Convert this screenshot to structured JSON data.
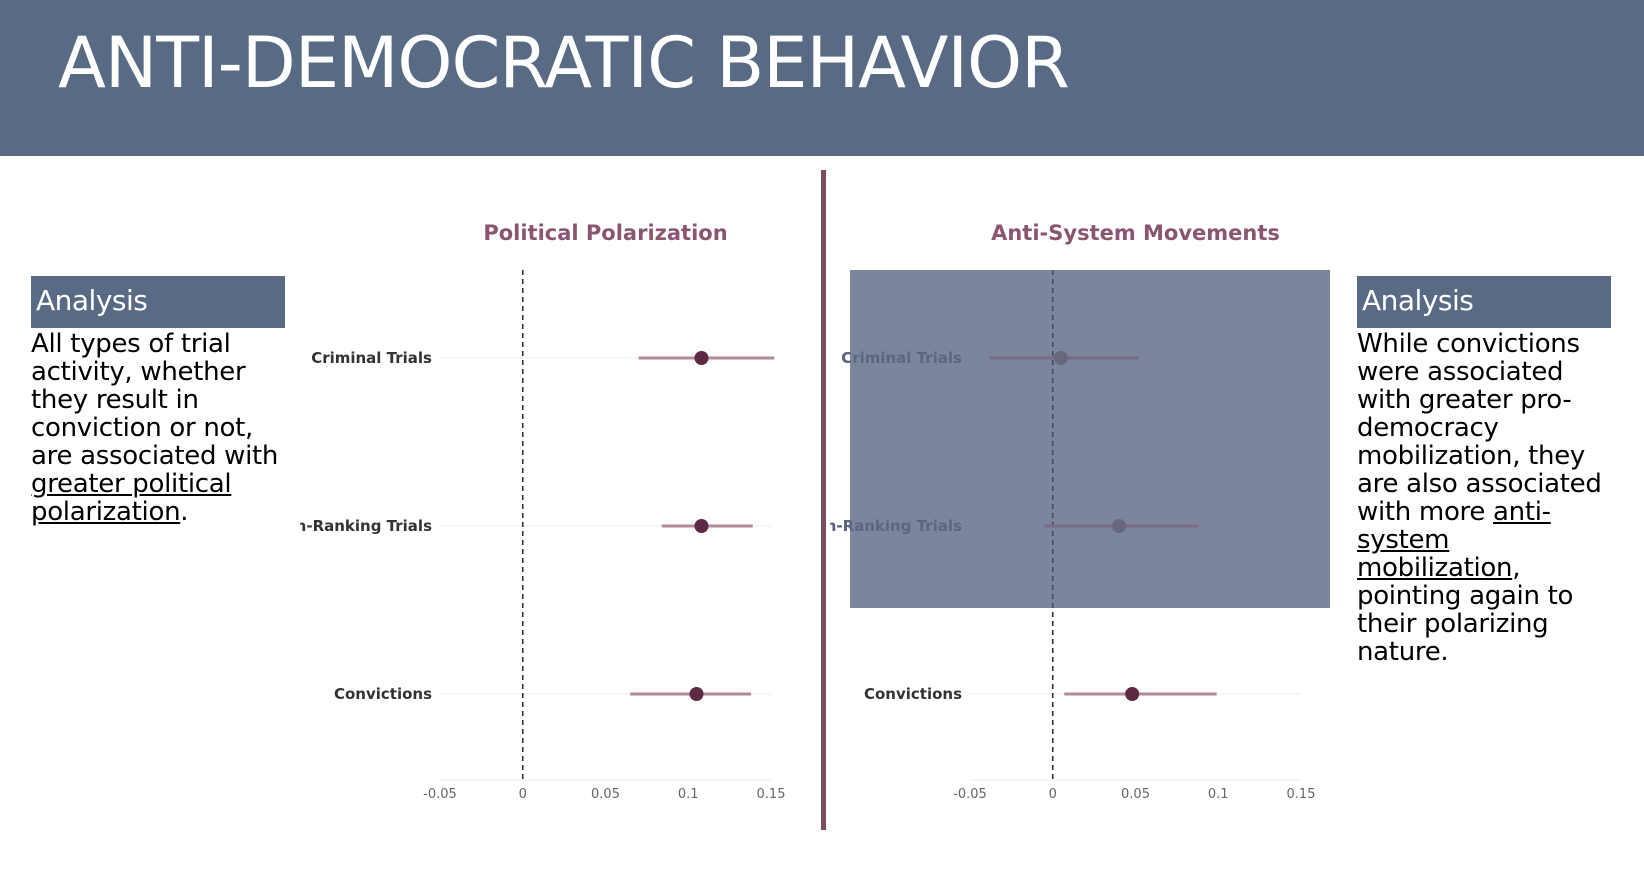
{
  "header": {
    "title": "ANTI-DEMOCRATIC BEHAVIOR"
  },
  "left_analysis": {
    "title": "Analysis",
    "text_before": "All types of trial activity, whether they result in conviction or not, are associated with ",
    "text_underlined": "greater political polarization",
    "text_after": "."
  },
  "right_analysis": {
    "title": "Analysis",
    "text_before": "While convictions were associated with greater pro-democracy mobilization, they are also associated with more ",
    "text_underlined": "anti-system mobilization",
    "text_after": ", pointing again to their polarizing nature."
  },
  "colors": {
    "header_bg": "#586a84",
    "point": "#5e2a43",
    "ci_line": "#b08a9b",
    "title": "#8a5570",
    "overlay": "#778299"
  },
  "chart_data": [
    {
      "type": "scatter",
      "subtype": "coefficient-plot",
      "title": "Political Polarization",
      "categories": [
        "Criminal Trials",
        "High-Ranking Trials",
        "Convictions"
      ],
      "estimates": [
        0.108,
        0.108,
        0.105
      ],
      "ci_low": [
        0.07,
        0.084,
        0.065
      ],
      "ci_high": [
        0.152,
        0.139,
        0.138
      ],
      "x_ticks": [
        "-0.05",
        "0",
        "0.05",
        "0.1",
        "0.15"
      ],
      "xlim": [
        -0.05,
        0.15
      ],
      "reference_line": 0,
      "highlight_overlay": false
    },
    {
      "type": "scatter",
      "subtype": "coefficient-plot",
      "title": "Anti-System Movements",
      "categories": [
        "Criminal Trials",
        "High-Ranking Trials",
        "Convictions"
      ],
      "estimates": [
        0.005,
        0.04,
        0.048
      ],
      "ci_low": [
        -0.038,
        -0.005,
        0.007
      ],
      "ci_high": [
        0.052,
        0.088,
        0.099
      ],
      "x_ticks": [
        "-0.05",
        "0",
        "0.05",
        "0.1",
        "0.15"
      ],
      "xlim": [
        -0.05,
        0.15
      ],
      "reference_line": 0,
      "highlight_overlay": true,
      "highlighted_categories": [
        "Criminal Trials",
        "High-Ranking Trials"
      ]
    }
  ]
}
